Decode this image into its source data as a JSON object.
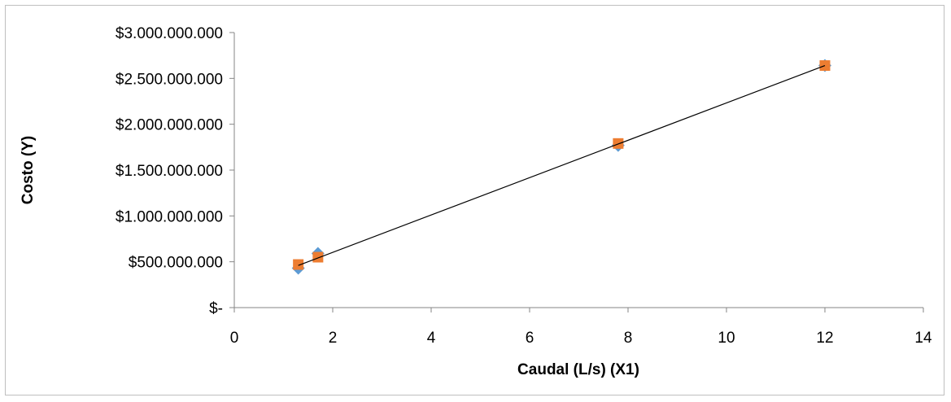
{
  "chart_data": {
    "type": "scatter",
    "title": "",
    "xlabel": "Caudal (L/s) (X1)",
    "ylabel": "Costo (Y)",
    "xlim": [
      0,
      14
    ],
    "ylim": [
      0,
      3000000000
    ],
    "x_ticks": [
      0,
      2,
      4,
      6,
      8,
      10,
      12,
      14
    ],
    "x_tick_labels": [
      "0",
      "2",
      "4",
      "6",
      "8",
      "10",
      "12",
      "14"
    ],
    "y_ticks": [
      0,
      500000000,
      1000000000,
      1500000000,
      2000000000,
      2500000000,
      3000000000
    ],
    "y_tick_labels": [
      "$-",
      "$500.000.000",
      "$1.000.000.000",
      "$1.500.000.000",
      "$2.000.000.000",
      "$2.500.000.000",
      "$3.000.000.000"
    ],
    "grid": false,
    "legend": "none",
    "series": [
      {
        "marker": "diamond",
        "color": "#5b9bd5",
        "points": [
          [
            1.3,
            430000000
          ],
          [
            1.7,
            590000000
          ],
          [
            7.8,
            1770000000
          ],
          [
            12.0,
            2640000000
          ]
        ]
      },
      {
        "marker": "square",
        "color": "#ed7d31",
        "points": [
          [
            1.3,
            470000000
          ],
          [
            1.7,
            550000000
          ],
          [
            7.8,
            1790000000
          ],
          [
            12.0,
            2640000000
          ]
        ]
      }
    ],
    "trendline": {
      "color": "#000000",
      "points": [
        [
          1.3,
          460000000
        ],
        [
          12.0,
          2640000000
        ]
      ]
    }
  }
}
